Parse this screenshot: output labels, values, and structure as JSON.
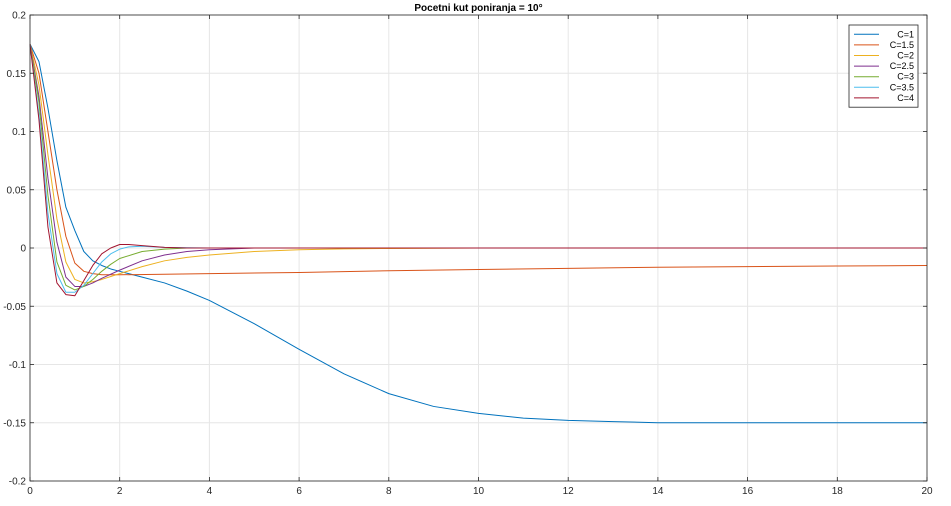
{
  "chart_data": {
    "type": "line",
    "title": "Pocetni kut poniranja = 10°",
    "xlabel": "",
    "ylabel": "",
    "xlim": [
      0,
      20
    ],
    "ylim": [
      -0.2,
      0.2
    ],
    "xticks": [
      0,
      2,
      4,
      6,
      8,
      10,
      12,
      14,
      16,
      18,
      20
    ],
    "xtick_labels": [
      "0",
      "2",
      "4",
      "6",
      "8",
      "10",
      "12",
      "14",
      "16",
      "18",
      "20"
    ],
    "yticks": [
      -0.2,
      -0.15,
      -0.1,
      -0.05,
      0,
      0.05,
      0.1,
      0.15,
      0.2
    ],
    "ytick_labels": [
      "-0.2",
      "-0.15",
      "-0.1",
      "-0.05",
      "0",
      "0.05",
      "0.1",
      "0.15",
      "0.2"
    ],
    "grid": true,
    "legend_position": "top-right",
    "series": [
      {
        "name": "C=1",
        "color": "#0072bd",
        "x": [
          0,
          0.2,
          0.4,
          0.6,
          0.8,
          1.0,
          1.2,
          1.4,
          1.6,
          1.8,
          2,
          2.5,
          3,
          3.5,
          4,
          5,
          6,
          7,
          8,
          9,
          10,
          11,
          12,
          13,
          14,
          16,
          18,
          20
        ],
        "y": [
          0.175,
          0.16,
          0.12,
          0.075,
          0.035,
          0.015,
          -0.003,
          -0.011,
          -0.015,
          -0.018,
          -0.02,
          -0.025,
          -0.03,
          -0.037,
          -0.045,
          -0.065,
          -0.087,
          -0.108,
          -0.125,
          -0.136,
          -0.142,
          -0.146,
          -0.148,
          -0.149,
          -0.15,
          -0.15,
          -0.15,
          -0.15
        ]
      },
      {
        "name": "C=1.5",
        "color": "#d95319",
        "x": [
          0,
          0.2,
          0.4,
          0.6,
          0.8,
          1.0,
          1.2,
          1.4,
          1.6,
          2,
          3,
          4,
          6,
          8,
          10,
          12,
          14,
          16,
          18,
          20
        ],
        "y": [
          0.175,
          0.15,
          0.1,
          0.05,
          0.01,
          -0.013,
          -0.02,
          -0.022,
          -0.023,
          -0.023,
          -0.0225,
          -0.022,
          -0.021,
          -0.0195,
          -0.0185,
          -0.0175,
          -0.0165,
          -0.016,
          -0.0155,
          -0.015
        ]
      },
      {
        "name": "C=2",
        "color": "#edb120",
        "x": [
          0,
          0.2,
          0.4,
          0.6,
          0.8,
          1.0,
          1.2,
          1.4,
          1.6,
          2,
          2.5,
          3,
          3.5,
          4,
          5,
          6,
          7,
          8,
          10,
          20
        ],
        "y": [
          0.175,
          0.14,
          0.08,
          0.025,
          -0.012,
          -0.027,
          -0.03,
          -0.029,
          -0.027,
          -0.022,
          -0.016,
          -0.011,
          -0.008,
          -0.006,
          -0.003,
          -0.0015,
          -0.0008,
          -0.0004,
          0,
          0
        ]
      },
      {
        "name": "C=2.5",
        "color": "#7e2f8e",
        "x": [
          0,
          0.2,
          0.4,
          0.6,
          0.8,
          1.0,
          1.2,
          1.4,
          1.6,
          2,
          2.5,
          3,
          3.5,
          4,
          4.5,
          5,
          10,
          20
        ],
        "y": [
          0.175,
          0.13,
          0.06,
          0.005,
          -0.025,
          -0.033,
          -0.033,
          -0.03,
          -0.026,
          -0.019,
          -0.011,
          -0.006,
          -0.003,
          -0.0015,
          -0.0007,
          0,
          0,
          0
        ]
      },
      {
        "name": "C=3",
        "color": "#77ac30",
        "x": [
          0,
          0.2,
          0.4,
          0.6,
          0.8,
          1.0,
          1.2,
          1.4,
          1.6,
          1.8,
          2,
          2.5,
          3,
          3.5,
          4,
          5,
          20
        ],
        "y": [
          0.175,
          0.125,
          0.045,
          -0.012,
          -0.032,
          -0.036,
          -0.033,
          -0.027,
          -0.02,
          -0.014,
          -0.009,
          -0.003,
          -0.001,
          0,
          0,
          0,
          0
        ]
      },
      {
        "name": "C=3.5",
        "color": "#4dbeee",
        "x": [
          0,
          0.2,
          0.4,
          0.6,
          0.8,
          1.0,
          1.2,
          1.4,
          1.6,
          1.8,
          2,
          2.2,
          2.5,
          3,
          4,
          20
        ],
        "y": [
          0.175,
          0.115,
          0.03,
          -0.022,
          -0.038,
          -0.038,
          -0.032,
          -0.022,
          -0.012,
          -0.005,
          -0.001,
          0.001,
          0.0015,
          0.0005,
          0,
          0
        ]
      },
      {
        "name": "C=4",
        "color": "#a2142f",
        "x": [
          0,
          0.2,
          0.4,
          0.6,
          0.8,
          1.0,
          1.2,
          1.4,
          1.6,
          1.8,
          2,
          2.2,
          2.5,
          3,
          3.5,
          4,
          20
        ],
        "y": [
          0.175,
          0.11,
          0.018,
          -0.03,
          -0.04,
          -0.041,
          -0.028,
          -0.015,
          -0.005,
          0,
          0.003,
          0.003,
          0.002,
          0.0005,
          0,
          0,
          0
        ]
      }
    ]
  }
}
